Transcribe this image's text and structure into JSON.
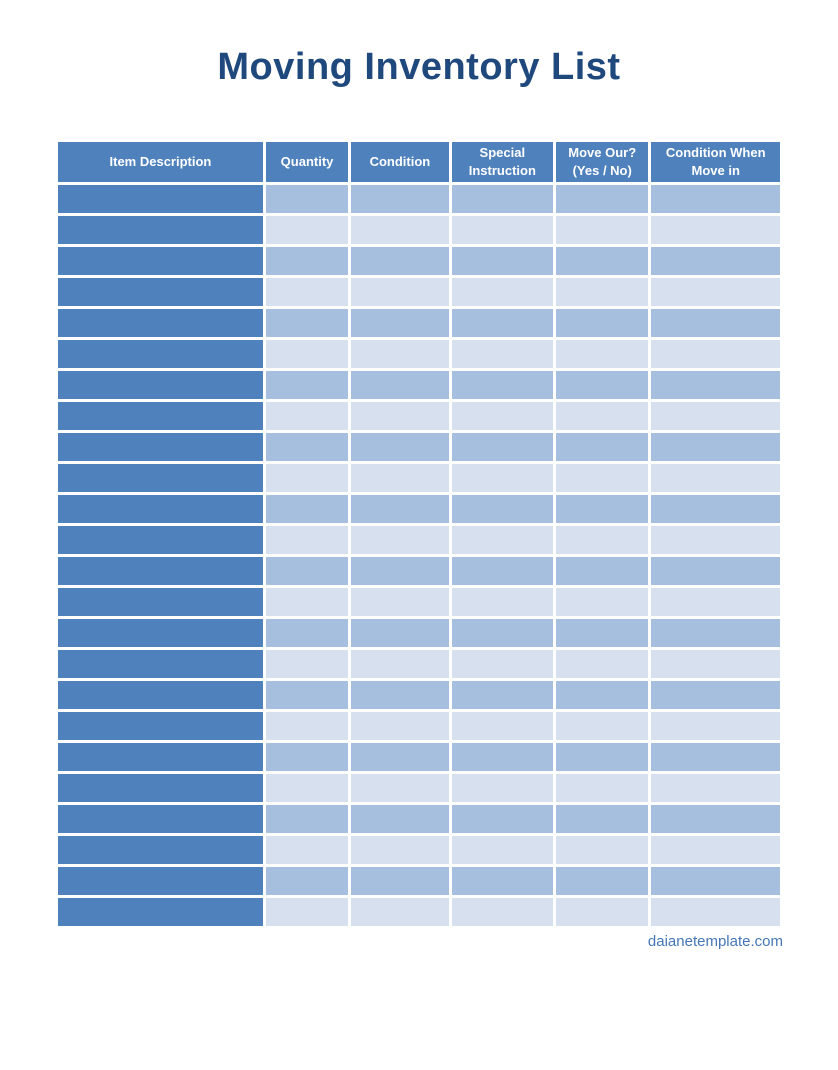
{
  "page": {
    "title": "Moving Inventory List",
    "footer_link": "daianetemplate.com"
  },
  "table": {
    "columns": [
      {
        "id": "item-description",
        "label": "Item Description"
      },
      {
        "id": "quantity",
        "label": "Quantity"
      },
      {
        "id": "condition",
        "label": "Condition"
      },
      {
        "id": "special-instruction",
        "label": "Special\nInstruction"
      },
      {
        "id": "move-out",
        "label": "Move Our?\n(Yes / No)"
      },
      {
        "id": "condition-when-move-in",
        "label": "Condition When\nMove in"
      }
    ],
    "row_count": 24,
    "colors": {
      "header": "#4F81BD",
      "first_column": "#4F81BD",
      "band_odd": "#A6BFDE",
      "band_even": "#D6E0EF",
      "header_text": "#FFFFFF",
      "title_text": "#1F497D",
      "footer_text": "#4577B8"
    }
  }
}
